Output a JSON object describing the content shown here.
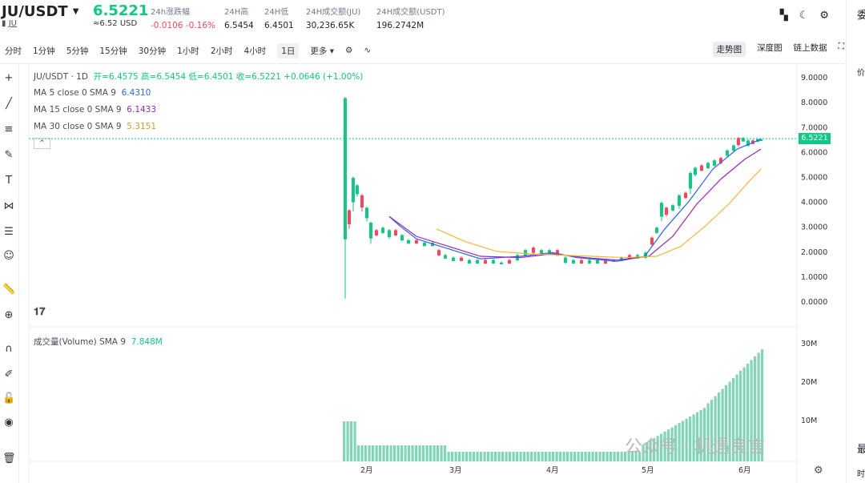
{
  "header": {
    "pair": "JU/USDT",
    "token": "JU",
    "price": "6.5221",
    "usd": "≈6.52 USD",
    "stats": [
      {
        "label": "24h涨跌幅",
        "value": "-0.0106 -0.16%",
        "red": true
      },
      {
        "label": "24H高",
        "value": "6.5454"
      },
      {
        "label": "24H低",
        "value": "6.4501"
      },
      {
        "label": "24H成交额(JU)",
        "value": "30,236.65K"
      },
      {
        "label": "24H成交额(USDT)",
        "value": "196.2742M"
      }
    ]
  },
  "toolbar": {
    "intervals": [
      "分时",
      "1分钟",
      "5分钟",
      "15分钟",
      "30分钟",
      "1小时",
      "2小时",
      "4小时",
      "1日",
      "更多"
    ],
    "active": "1日",
    "views": [
      "走势图",
      "深度图",
      "链上数据"
    ]
  },
  "legend": {
    "title": "JU/USDT · 1D",
    "ohlc": "开=6.4575 高=6.5454 低=6.4501 收=6.5221 +0.0646 (+1.00%)",
    "ma5": "MA 5 close 0 SMA 9",
    "ma5v": "6.4310",
    "ma15": "MA 15 close 0 SMA 9",
    "ma15v": "6.1433",
    "ma30": "MA 30 close 0 SMA 9",
    "ma30v": "5.3151",
    "vol": "成交量(Volume) SMA 9",
    "volv": "7.848M"
  },
  "colors": {
    "up": "#0ecb81",
    "down": "#f6465d",
    "ma5": "#2962ff",
    "ma15": "#9c27b0",
    "ma30": "#f7b731"
  },
  "price_axis": [
    "9.0000",
    "8.0000",
    "7.0000",
    "6.0000",
    "5.0000",
    "4.0000",
    "3.0000",
    "2.0000",
    "1.0000",
    "0.0000"
  ],
  "last_price": "6.5221",
  "vol_axis": [
    "30M",
    "20M",
    "10M"
  ],
  "months": [
    "2月",
    "3月",
    "4月",
    "5月",
    "6月"
  ],
  "right_panel": {
    "top": "委",
    "col": "价",
    "bottom": "最",
    "time": "时"
  },
  "watermark": "公众号 · 机遇良言"
}
